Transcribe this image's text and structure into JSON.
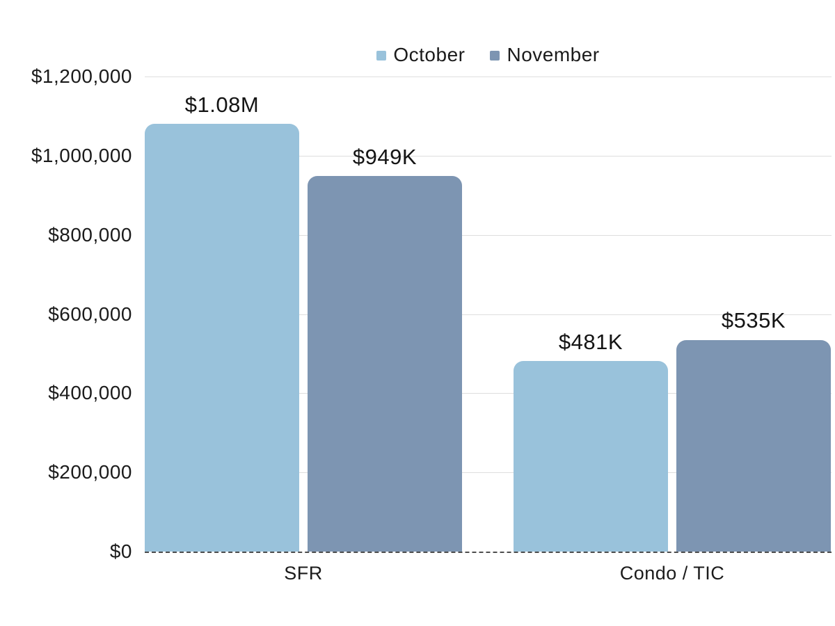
{
  "chart_data": {
    "type": "bar",
    "title": "",
    "xlabel": "",
    "ylabel": "",
    "categories": [
      "SFR",
      "Condo / TIC"
    ],
    "series": [
      {
        "name": "October",
        "color": "#99C2DB",
        "values": [
          1080000,
          481000
        ],
        "data_labels": [
          "$1.08M",
          "$481K"
        ]
      },
      {
        "name": "November",
        "color": "#7D95B2",
        "values": [
          949000,
          535000
        ],
        "data_labels": [
          "$949K",
          "$535K"
        ]
      }
    ],
    "ylim": [
      0,
      1200000
    ],
    "ytick_interval": 200000,
    "ytick_labels": [
      "$0",
      "$200,000",
      "$400,000",
      "$600,000",
      "$800,000",
      "$1,000,000",
      "$1,200,000"
    ],
    "grid": true,
    "legend_position": "top-center",
    "colors": {
      "gridline": "#DEDEDE",
      "zero_axis_line": "#4D4D4D",
      "text": "#1B1B1B",
      "background": "#FFFFFF"
    }
  }
}
